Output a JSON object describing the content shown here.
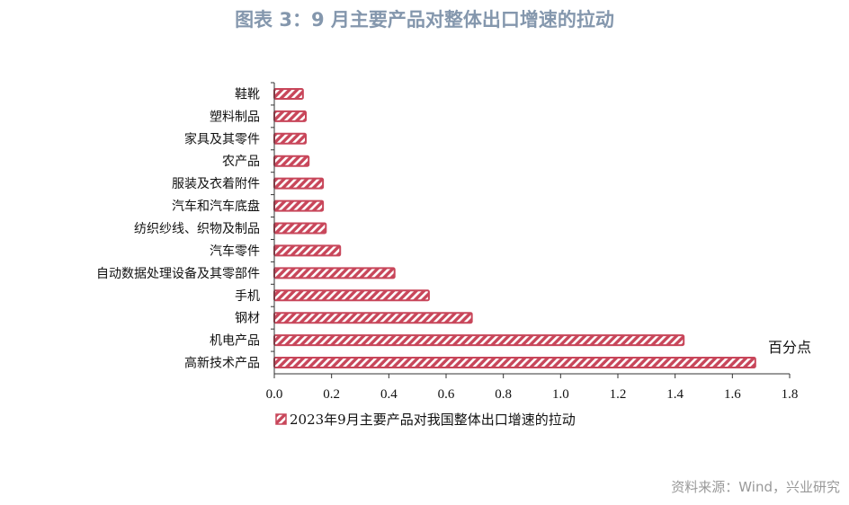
{
  "title": "图表 3：9 月主要产品对整体出口增速的拉动",
  "source": "资料来源：Wind，兴业研究",
  "chart_data": {
    "type": "bar",
    "orientation": "horizontal",
    "categories": [
      "鞋靴",
      "塑料制品",
      "家具及其零件",
      "农产品",
      "服装及衣着附件",
      "汽车和汽车底盘",
      "纺织纱线、织物及制品",
      "汽车零件",
      "自动数据处理设备及其零部件",
      "手机",
      "钢材",
      "机电产品",
      "高新技术产品"
    ],
    "series": [
      {
        "name": "2023年9月主要产品对我国整体出口增速的拉动",
        "values": [
          0.1,
          0.11,
          0.11,
          0.12,
          0.17,
          0.17,
          0.18,
          0.23,
          0.42,
          0.54,
          0.69,
          1.43,
          1.68
        ],
        "color": "#c8465a"
      }
    ],
    "xlim": [
      0,
      1.8
    ],
    "xticks": [
      "0.0",
      "0.2",
      "0.4",
      "0.6",
      "0.8",
      "1.0",
      "1.2",
      "1.4",
      "1.6",
      "1.8"
    ],
    "unit_label": "百分点",
    "legend_position": "bottom",
    "grid": false
  }
}
